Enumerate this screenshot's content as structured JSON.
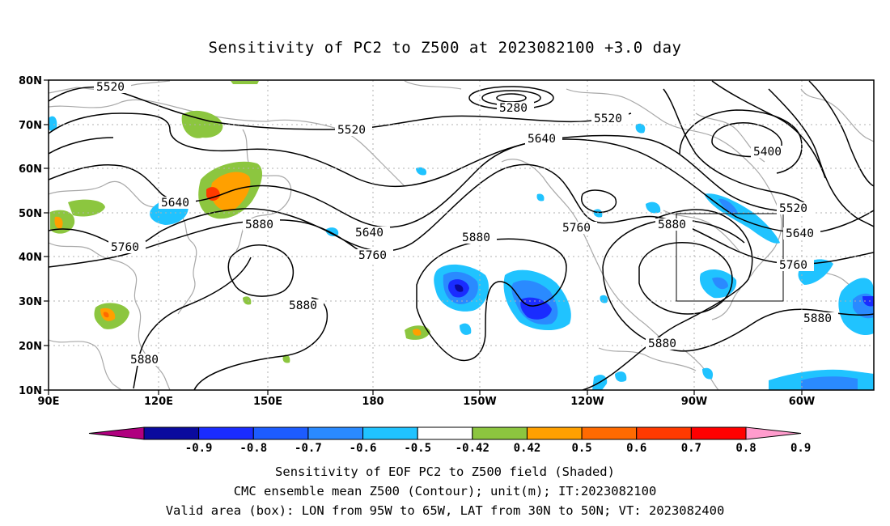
{
  "title": "Sensitivity of PC2 to Z500 at 2023082100 +3.0 day",
  "lat_labels": [
    "80N",
    "70N",
    "60N",
    "50N",
    "40N",
    "30N",
    "20N",
    "10N"
  ],
  "lon_labels": [
    "90E",
    "120E",
    "150E",
    "180",
    "150W",
    "120W",
    "90W",
    "60W"
  ],
  "contour_labels": {
    "c5520": "5520",
    "c5280": "5280",
    "c5400": "5400",
    "c5640": "5640",
    "c5760": "5760",
    "c5880": "5880"
  },
  "colorbar": {
    "ticks": [
      "-0.9",
      "-0.8",
      "-0.7",
      "-0.6",
      "-0.5",
      "-0.42",
      "0.42",
      "0.5",
      "0.6",
      "0.7",
      "0.8",
      "0.9"
    ],
    "colors": [
      "#b0007f",
      "#0a0a9e",
      "#1a2cff",
      "#1d5cff",
      "#2a8aff",
      "#20c3ff",
      "#ffffff",
      "#8cc63f",
      "#ffa000",
      "#ff6a00",
      "#ff3a00",
      "#ff0000",
      "#ff9ccd"
    ]
  },
  "captions": [
    "Sensitivity of EOF PC2 to Z500 field (Shaded)",
    "CMC ensemble mean Z500 (Contour); unit(m); IT:2023082100",
    "Valid area (box): LON from 95W to 65W, LAT from 30N to 50N; VT: 2023082400"
  ]
}
